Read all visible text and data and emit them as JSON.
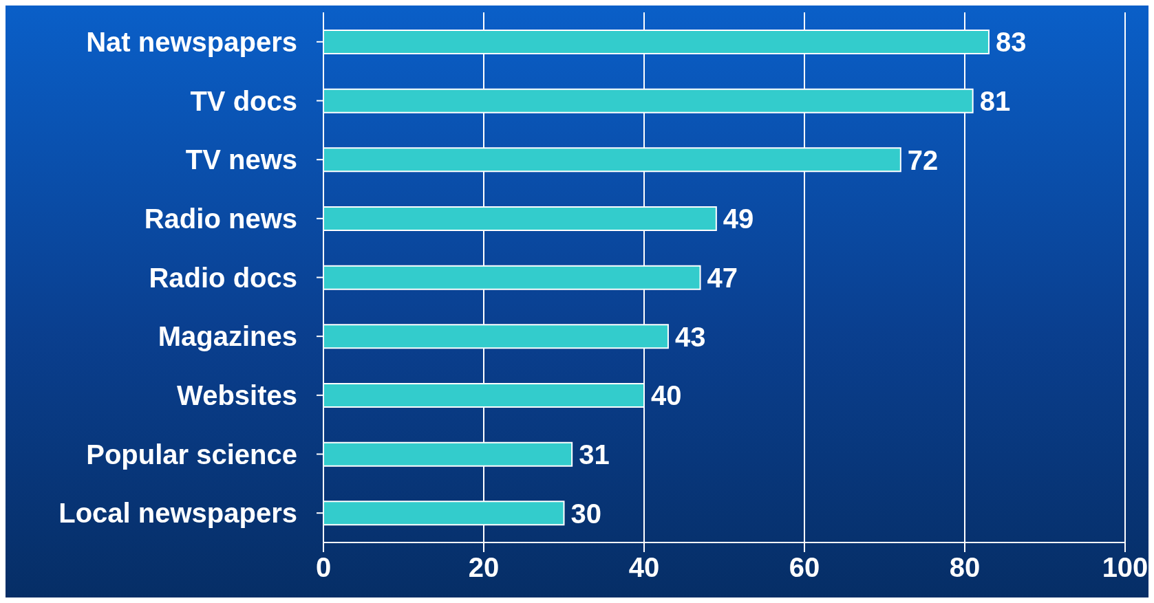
{
  "chart_data": {
    "type": "bar",
    "orientation": "horizontal",
    "categories": [
      "Nat newspapers",
      "TV docs",
      "TV news",
      "Radio news",
      "Radio docs",
      "Magazines",
      "Websites",
      "Popular science",
      "Local newspapers"
    ],
    "values": [
      83,
      81,
      72,
      49,
      47,
      43,
      40,
      31,
      30
    ],
    "color": "#33cccc",
    "data_labels": true,
    "xlim": [
      0,
      100
    ],
    "xticks": [
      0,
      20,
      40,
      60,
      80,
      100
    ],
    "grid": "x"
  }
}
